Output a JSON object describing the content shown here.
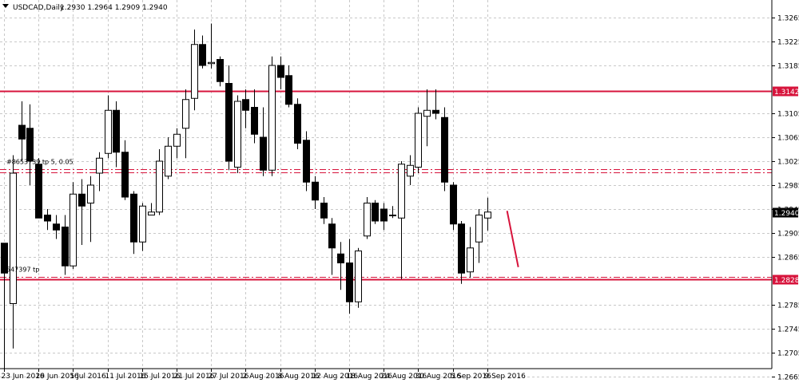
{
  "header": {
    "symbol": "USDCAD,Daily",
    "ohlc": "1.2930 1.2964 1.2909 1.2940"
  },
  "colors": {
    "background": "#ffffff",
    "grid": "#c8c8c8",
    "candle": "#000000",
    "level_line": "#d7143c",
    "arrow": "#d7143c"
  },
  "chart_data": {
    "type": "candlestick",
    "ylim": [
      1.2665,
      1.3265
    ],
    "grid": true,
    "y_ticks": [
      "1.3265",
      "1.3225",
      "1.3185",
      "1.3105",
      "1.3065",
      "1.3025",
      "1.2985",
      "1.2945",
      "1.2905",
      "1.2865",
      "1.2785",
      "1.2745",
      "1.2705",
      "1.2665"
    ],
    "x_tick_labels": [
      "23 Jun 2016",
      "29 Jun 2016",
      "5 Jul 2016",
      "11 Jul 2016",
      "15 Jul 2016",
      "21 Jul 2016",
      "27 Jul 2016",
      "2 Aug 2016",
      "8 Aug 2016",
      "12 Aug 2016",
      "18 Aug 2016",
      "24 Aug 2016",
      "30 Aug 2016",
      "5 Sep 2016",
      "9 Sep 2016"
    ],
    "x_tick_indices": [
      0,
      4,
      8,
      12,
      16,
      20,
      24,
      28,
      32,
      36,
      40,
      44,
      48,
      52,
      56
    ],
    "candles": [
      {
        "o": 1.2888,
        "h": 1.2888,
        "l": 1.2678,
        "c": 1.2838
      },
      {
        "o": 1.2787,
        "h": 1.3035,
        "l": 1.2712,
        "c": 1.3005
      },
      {
        "o": 1.3085,
        "h": 1.3125,
        "l": 1.3025,
        "c": 1.3062
      },
      {
        "o": 1.308,
        "h": 1.312,
        "l": 1.2985,
        "c": 1.3025
      },
      {
        "o": 1.302,
        "h": 1.303,
        "l": 1.2935,
        "c": 1.293
      },
      {
        "o": 1.2935,
        "h": 1.2945,
        "l": 1.291,
        "c": 1.2925
      },
      {
        "o": 1.292,
        "h": 1.2935,
        "l": 1.2895,
        "c": 1.291
      },
      {
        "o": 1.2915,
        "h": 1.2935,
        "l": 1.2835,
        "c": 1.285
      },
      {
        "o": 1.285,
        "h": 1.299,
        "l": 1.2845,
        "c": 1.297
      },
      {
        "o": 1.297,
        "h": 1.2995,
        "l": 1.2885,
        "c": 1.295
      },
      {
        "o": 1.2955,
        "h": 1.3,
        "l": 1.289,
        "c": 1.2985
      },
      {
        "o": 1.3005,
        "h": 1.304,
        "l": 1.2975,
        "c": 1.303
      },
      {
        "o": 1.3038,
        "h": 1.3135,
        "l": 1.303,
        "c": 1.311
      },
      {
        "o": 1.311,
        "h": 1.3125,
        "l": 1.3015,
        "c": 1.304
      },
      {
        "o": 1.304,
        "h": 1.306,
        "l": 1.296,
        "c": 1.2965
      },
      {
        "o": 1.297,
        "h": 1.2975,
        "l": 1.287,
        "c": 1.289
      },
      {
        "o": 1.289,
        "h": 1.2955,
        "l": 1.2875,
        "c": 1.295
      },
      {
        "o": 1.2935,
        "h": 1.2955,
        "l": 1.2935,
        "c": 1.294
      },
      {
        "o": 1.294,
        "h": 1.3045,
        "l": 1.2935,
        "c": 1.3025
      },
      {
        "o": 1.3,
        "h": 1.3065,
        "l": 1.2995,
        "c": 1.305
      },
      {
        "o": 1.305,
        "h": 1.308,
        "l": 1.303,
        "c": 1.307
      },
      {
        "o": 1.308,
        "h": 1.3145,
        "l": 1.303,
        "c": 1.3128
      },
      {
        "o": 1.313,
        "h": 1.3245,
        "l": 1.311,
        "c": 1.322
      },
      {
        "o": 1.322,
        "h": 1.3235,
        "l": 1.318,
        "c": 1.3185
      },
      {
        "o": 1.3188,
        "h": 1.3255,
        "l": 1.318,
        "c": 1.319
      },
      {
        "o": 1.3195,
        "h": 1.32,
        "l": 1.315,
        "c": 1.3158
      },
      {
        "o": 1.3155,
        "h": 1.3185,
        "l": 1.301,
        "c": 1.3025
      },
      {
        "o": 1.3015,
        "h": 1.3135,
        "l": 1.3005,
        "c": 1.3125
      },
      {
        "o": 1.3128,
        "h": 1.3145,
        "l": 1.308,
        "c": 1.311
      },
      {
        "o": 1.3115,
        "h": 1.3145,
        "l": 1.3055,
        "c": 1.307
      },
      {
        "o": 1.3065,
        "h": 1.3115,
        "l": 1.3,
        "c": 1.301
      },
      {
        "o": 1.301,
        "h": 1.32,
        "l": 1.3,
        "c": 1.3185
      },
      {
        "o": 1.3185,
        "h": 1.32,
        "l": 1.3145,
        "c": 1.3165
      },
      {
        "o": 1.3168,
        "h": 1.3185,
        "l": 1.3115,
        "c": 1.312
      },
      {
        "o": 1.312,
        "h": 1.313,
        "l": 1.3045,
        "c": 1.3055
      },
      {
        "o": 1.306,
        "h": 1.3075,
        "l": 1.2975,
        "c": 1.299
      },
      {
        "o": 1.299,
        "h": 1.3,
        "l": 1.2945,
        "c": 1.296
      },
      {
        "o": 1.2955,
        "h": 1.2965,
        "l": 1.292,
        "c": 1.293
      },
      {
        "o": 1.292,
        "h": 1.293,
        "l": 1.2835,
        "c": 1.288
      },
      {
        "o": 1.287,
        "h": 1.289,
        "l": 1.281,
        "c": 1.2855
      },
      {
        "o": 1.2855,
        "h": 1.2895,
        "l": 1.277,
        "c": 1.279
      },
      {
        "o": 1.279,
        "h": 1.288,
        "l": 1.278,
        "c": 1.2875
      },
      {
        "o": 1.29,
        "h": 1.2965,
        "l": 1.2895,
        "c": 1.2955
      },
      {
        "o": 1.2955,
        "h": 1.296,
        "l": 1.292,
        "c": 1.2925
      },
      {
        "o": 1.2945,
        "h": 1.2955,
        "l": 1.291,
        "c": 1.2925
      },
      {
        "o": 1.2935,
        "h": 1.295,
        "l": 1.293,
        "c": 1.2935
      },
      {
        "o": 1.293,
        "h": 1.3025,
        "l": 1.2828,
        "c": 1.302
      },
      {
        "o": 1.3,
        "h": 1.3035,
        "l": 1.2985,
        "c": 1.3018
      },
      {
        "o": 1.3015,
        "h": 1.3115,
        "l": 1.3005,
        "c": 1.3105
      },
      {
        "o": 1.31,
        "h": 1.3145,
        "l": 1.305,
        "c": 1.311
      },
      {
        "o": 1.311,
        "h": 1.3145,
        "l": 1.3095,
        "c": 1.3105
      },
      {
        "o": 1.3098,
        "h": 1.3115,
        "l": 1.2975,
        "c": 1.299
      },
      {
        "o": 1.2985,
        "h": 1.299,
        "l": 1.291,
        "c": 1.292
      },
      {
        "o": 1.292,
        "h": 1.2925,
        "l": 1.282,
        "c": 1.2838
      },
      {
        "o": 1.284,
        "h": 1.2915,
        "l": 1.283,
        "c": 1.288
      },
      {
        "o": 1.289,
        "h": 1.2945,
        "l": 1.2855,
        "c": 1.2935
      },
      {
        "o": 1.293,
        "h": 1.2964,
        "l": 1.2909,
        "c": 1.294
      }
    ],
    "levels": [
      {
        "price": 1.3142,
        "label": "1.3142",
        "style": "solid"
      },
      {
        "price": 1.2828,
        "label": "1.2828",
        "style": "solid"
      },
      {
        "price": 1.3012,
        "label": "",
        "style": "dashdot"
      },
      {
        "price": 1.3007,
        "label": "",
        "style": "dashdot"
      },
      {
        "price": 1.2832,
        "label": "",
        "style": "dashdot"
      }
    ],
    "current_price_label": "1.2940",
    "current_price": 1.294,
    "annotations": [
      {
        "text": "#8653739 tp 5, 0.05",
        "price": 1.3018
      },
      {
        "text": "547397 tp",
        "price": 1.2838
      }
    ],
    "arrow": {
      "from_index": 58.3,
      "from_price": 1.2942,
      "to_index": 59.6,
      "to_price": 1.2848
    }
  }
}
